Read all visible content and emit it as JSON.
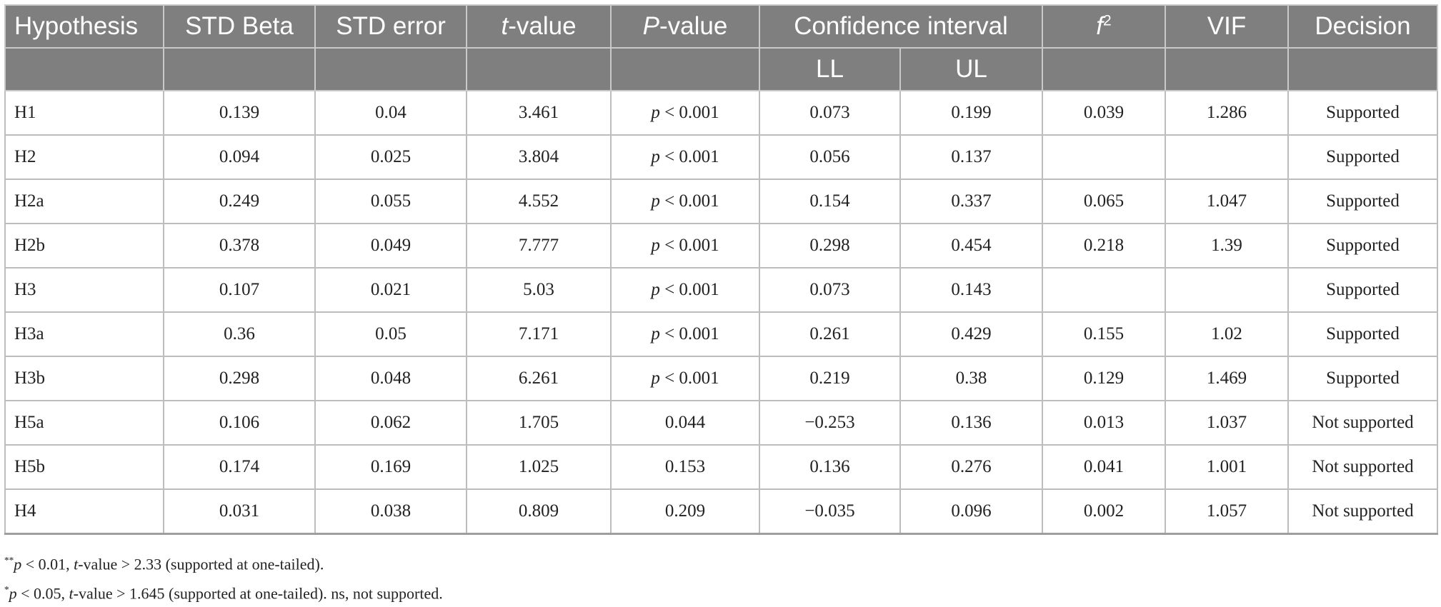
{
  "table": {
    "headers": {
      "hypothesis": "Hypothesis",
      "std_beta": "STD Beta",
      "std_error": "STD error",
      "t_value_italic": "t",
      "t_value_rest": "-value",
      "p_value_italic": "P",
      "p_value_rest": "-value",
      "confidence_interval": "Confidence interval",
      "ll": "LL",
      "ul": "UL",
      "f2_base": "f",
      "f2_sup": "2",
      "vif": "VIF",
      "decision": "Decision"
    },
    "rows": [
      {
        "hyp": "H1",
        "beta": "0.139",
        "se": "0.04",
        "t": "3.461",
        "p_italic": "p",
        "p_rest": " < 0.001",
        "ll": "0.073",
        "ul": "0.199",
        "f2": "0.039",
        "vif": "1.286",
        "decision": "Supported"
      },
      {
        "hyp": "H2",
        "beta": "0.094",
        "se": "0.025",
        "t": "3.804",
        "p_italic": "p",
        "p_rest": " < 0.001",
        "ll": "0.056",
        "ul": "0.137",
        "f2": "",
        "vif": "",
        "decision": "Supported"
      },
      {
        "hyp": "H2a",
        "beta": "0.249",
        "se": "0.055",
        "t": "4.552",
        "p_italic": "p",
        "p_rest": " < 0.001",
        "ll": "0.154",
        "ul": "0.337",
        "f2": "0.065",
        "vif": "1.047",
        "decision": "Supported"
      },
      {
        "hyp": "H2b",
        "beta": "0.378",
        "se": "0.049",
        "t": "7.777",
        "p_italic": "p",
        "p_rest": " < 0.001",
        "ll": "0.298",
        "ul": "0.454",
        "f2": "0.218",
        "vif": "1.39",
        "decision": "Supported"
      },
      {
        "hyp": "H3",
        "beta": "0.107",
        "se": "0.021",
        "t": "5.03",
        "p_italic": "p",
        "p_rest": " < 0.001",
        "ll": "0.073",
        "ul": "0.143",
        "f2": "",
        "vif": "",
        "decision": "Supported"
      },
      {
        "hyp": "H3a",
        "beta": "0.36",
        "se": "0.05",
        "t": "7.171",
        "p_italic": "p",
        "p_rest": " < 0.001",
        "ll": "0.261",
        "ul": "0.429",
        "f2": "0.155",
        "vif": "1.02",
        "decision": "Supported"
      },
      {
        "hyp": "H3b",
        "beta": "0.298",
        "se": "0.048",
        "t": "6.261",
        "p_italic": "p",
        "p_rest": " < 0.001",
        "ll": "0.219",
        "ul": "0.38",
        "f2": "0.129",
        "vif": "1.469",
        "decision": "Supported"
      },
      {
        "hyp": "H5a",
        "beta": "0.106",
        "se": "0.062",
        "t": "1.705",
        "p_italic": "",
        "p_rest": "0.044",
        "ll": "−0.253",
        "ul": "0.136",
        "f2": "0.013",
        "vif": "1.037",
        "decision": "Not supported"
      },
      {
        "hyp": "H5b",
        "beta": "0.174",
        "se": "0.169",
        "t": "1.025",
        "p_italic": "",
        "p_rest": "0.153",
        "ll": "0.136",
        "ul": "0.276",
        "f2": "0.041",
        "vif": "1.001",
        "decision": "Not supported"
      },
      {
        "hyp": "H4",
        "beta": "0.031",
        "se": "0.038",
        "t": "0.809",
        "p_italic": "",
        "p_rest": "0.209",
        "ll": "−0.035",
        "ul": "0.096",
        "f2": "0.002",
        "vif": "1.057",
        "decision": "Not supported"
      }
    ]
  },
  "notes": {
    "note1": {
      "stars": "**",
      "p": "p",
      "a": " < 0.01, ",
      "t": "t",
      "b": "-value > 2.33 (supported at one-tailed)."
    },
    "note2": {
      "stars": "*",
      "p": "p",
      "a": " < 0.05, ",
      "t": "t",
      "b": "-value > 1.645 (supported at one-tailed). ns, not supported."
    }
  }
}
